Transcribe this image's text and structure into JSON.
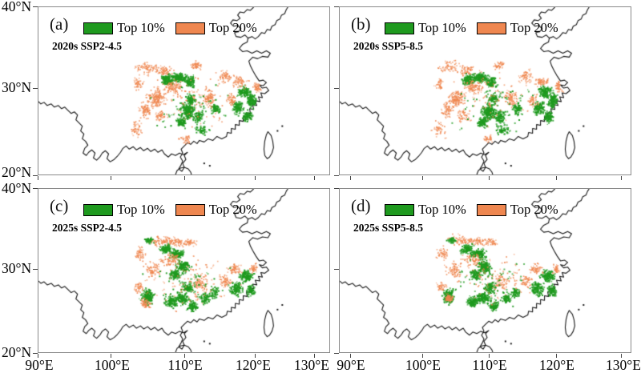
{
  "chart_data": {
    "type": "scatter",
    "description": "Four-panel map figure of southern/eastern China (90–130°E, 20–40°N) showing projected hotspot areas: Top 10% (green) and Top 20% (orange) under two SSP scenarios for 2020s and 2025s.",
    "legend": {
      "top10": "Top 10%",
      "top20": "Top 20%"
    },
    "colors": {
      "top10": "#1f9a1f",
      "top20": "#ef8750",
      "outline": "#161616",
      "frame": "#8a8a8a",
      "tick": "#444444"
    },
    "axes": {
      "lon_range": [
        90,
        130
      ],
      "lat_range": [
        20,
        40
      ],
      "lon_tick_labels": [
        "90°E",
        "100°E",
        "110°E",
        "120°E",
        "130°E"
      ],
      "lat_tick_labels": [
        "40°N",
        "30°N",
        "20°N"
      ]
    },
    "panels": [
      {
        "label": "(a)",
        "scenario": "2020s SSP2-4.5",
        "clusters": [
          [
            105.0,
            32.3,
            2.2,
            0.9,
            60,
            "o"
          ],
          [
            107.2,
            31.9,
            1.5,
            0.8,
            55,
            "o"
          ],
          [
            103.6,
            30.5,
            0.8,
            1.0,
            35,
            "o"
          ],
          [
            107.6,
            30.9,
            1.1,
            0.8,
            110,
            "g"
          ],
          [
            109.2,
            31.2,
            1.3,
            0.7,
            120,
            "g"
          ],
          [
            110.7,
            30.7,
            1.0,
            0.8,
            80,
            "g"
          ],
          [
            108.4,
            30.1,
            1.7,
            0.9,
            80,
            "o"
          ],
          [
            106.0,
            28.7,
            1.7,
            1.5,
            130,
            "o"
          ],
          [
            104.7,
            27.3,
            1.2,
            1.4,
            65,
            "o"
          ],
          [
            103.5,
            24.8,
            1.2,
            1.5,
            40,
            "o"
          ],
          [
            106.7,
            26.5,
            1.1,
            1.0,
            45,
            "o"
          ],
          [
            110.4,
            27.1,
            1.4,
            1.3,
            170,
            "g"
          ],
          [
            109.5,
            25.7,
            1.0,
            0.9,
            70,
            "g"
          ],
          [
            111.9,
            26.4,
            0.9,
            1.0,
            60,
            "g"
          ],
          [
            110.9,
            28.6,
            1.0,
            0.8,
            60,
            "g"
          ],
          [
            113.5,
            28.7,
            1.2,
            1.3,
            65,
            "o"
          ],
          [
            114.4,
            27.4,
            0.9,
            0.9,
            55,
            "g"
          ],
          [
            115.8,
            31.3,
            1.6,
            0.9,
            50,
            "o"
          ],
          [
            111.6,
            32.6,
            1.3,
            0.6,
            40,
            "o"
          ],
          [
            118.4,
            29.5,
            1.3,
            1.0,
            100,
            "g"
          ],
          [
            117.5,
            27.5,
            1.1,
            1.1,
            90,
            "g"
          ],
          [
            119.5,
            28.4,
            0.9,
            1.2,
            110,
            "g"
          ],
          [
            118.9,
            26.4,
            0.9,
            0.9,
            70,
            "g"
          ],
          [
            117.9,
            30.7,
            1.3,
            0.8,
            50,
            "o"
          ],
          [
            120.3,
            30.1,
            0.8,
            0.9,
            40,
            "o"
          ],
          [
            116.6,
            28.5,
            1.0,
            1.0,
            45,
            "o"
          ],
          [
            112.4,
            24.7,
            1.3,
            0.8,
            40,
            "g"
          ],
          [
            110.1,
            23.6,
            1.5,
            0.8,
            30,
            "o"
          ],
          [
            111.0,
            28.5,
            7.5,
            4.2,
            90,
            "o"
          ],
          [
            111.0,
            28.0,
            7.5,
            4.0,
            50,
            "g"
          ]
        ]
      },
      {
        "label": "(b)",
        "scenario": "2020s SSP5-8.5",
        "clusters": [
          [
            105.1,
            32.4,
            2.2,
            0.9,
            50,
            "o"
          ],
          [
            107.3,
            32.0,
            1.5,
            0.8,
            50,
            "o"
          ],
          [
            103.7,
            30.4,
            0.8,
            1.0,
            30,
            "o"
          ],
          [
            107.6,
            30.9,
            1.1,
            0.8,
            115,
            "g"
          ],
          [
            109.2,
            31.2,
            1.3,
            0.7,
            130,
            "g"
          ],
          [
            110.7,
            30.7,
            1.0,
            0.8,
            85,
            "g"
          ],
          [
            108.4,
            30.1,
            1.7,
            0.9,
            70,
            "o"
          ],
          [
            106.0,
            28.7,
            1.6,
            1.4,
            110,
            "o"
          ],
          [
            104.7,
            27.3,
            1.2,
            1.4,
            60,
            "o"
          ],
          [
            103.6,
            24.9,
            1.2,
            1.5,
            35,
            "o"
          ],
          [
            106.8,
            26.6,
            1.1,
            1.0,
            40,
            "o"
          ],
          [
            110.4,
            27.0,
            1.4,
            1.3,
            190,
            "g"
          ],
          [
            109.5,
            25.7,
            1.0,
            0.9,
            80,
            "g"
          ],
          [
            111.9,
            26.4,
            0.9,
            1.0,
            70,
            "g"
          ],
          [
            110.9,
            28.6,
            1.0,
            0.8,
            65,
            "g"
          ],
          [
            113.5,
            28.7,
            1.2,
            1.3,
            60,
            "o"
          ],
          [
            114.4,
            27.4,
            0.9,
            0.9,
            60,
            "g"
          ],
          [
            115.8,
            31.3,
            1.6,
            0.9,
            45,
            "o"
          ],
          [
            111.7,
            32.6,
            1.3,
            0.6,
            35,
            "o"
          ],
          [
            118.4,
            29.5,
            1.3,
            1.0,
            110,
            "g"
          ],
          [
            117.5,
            27.5,
            1.1,
            1.1,
            100,
            "g"
          ],
          [
            119.5,
            28.4,
            0.9,
            1.2,
            120,
            "g"
          ],
          [
            118.9,
            26.4,
            0.9,
            0.9,
            80,
            "g"
          ],
          [
            117.9,
            30.7,
            1.3,
            0.8,
            45,
            "o"
          ],
          [
            120.3,
            30.1,
            0.8,
            0.9,
            35,
            "o"
          ],
          [
            116.6,
            28.5,
            1.0,
            1.0,
            40,
            "o"
          ],
          [
            112.4,
            24.7,
            1.3,
            0.8,
            45,
            "g"
          ],
          [
            110.1,
            23.6,
            1.5,
            0.8,
            25,
            "o"
          ],
          [
            111.0,
            28.5,
            7.5,
            4.2,
            80,
            "o"
          ],
          [
            111.0,
            28.0,
            7.5,
            4.0,
            55,
            "g"
          ]
        ]
      },
      {
        "label": "(c)",
        "scenario": "2025s SSP2-4.5",
        "clusters": [
          [
            106.6,
            33.1,
            2.4,
            0.8,
            75,
            "o"
          ],
          [
            105.1,
            33.2,
            0.9,
            0.5,
            40,
            "g"
          ],
          [
            103.9,
            31.6,
            0.9,
            1.2,
            45,
            "o"
          ],
          [
            108.9,
            33.0,
            1.3,
            0.6,
            45,
            "o"
          ],
          [
            107.4,
            32.2,
            1.2,
            0.7,
            90,
            "g"
          ],
          [
            108.9,
            31.6,
            1.2,
            0.7,
            110,
            "g"
          ],
          [
            108.1,
            30.9,
            2.0,
            1.0,
            70,
            "o"
          ],
          [
            109.7,
            30.1,
            1.2,
            1.0,
            120,
            "g"
          ],
          [
            108.6,
            29.1,
            1.0,
            0.8,
            70,
            "g"
          ],
          [
            105.6,
            29.6,
            1.5,
            1.3,
            65,
            "o"
          ],
          [
            104.9,
            26.3,
            1.0,
            1.3,
            160,
            "g"
          ],
          [
            104.7,
            25.4,
            0.9,
            0.8,
            55,
            "o"
          ],
          [
            103.8,
            27.5,
            0.8,
            0.8,
            35,
            "o"
          ],
          [
            108.1,
            25.6,
            1.2,
            0.9,
            90,
            "g"
          ],
          [
            109.6,
            26.1,
            1.3,
            1.0,
            110,
            "g"
          ],
          [
            111.1,
            25.1,
            1.0,
            0.8,
            70,
            "g"
          ],
          [
            110.5,
            27.4,
            1.1,
            0.9,
            70,
            "g"
          ],
          [
            112.1,
            28.1,
            1.5,
            1.4,
            55,
            "o"
          ],
          [
            112.9,
            26.1,
            0.9,
            0.9,
            55,
            "g"
          ],
          [
            114.2,
            26.8,
            0.9,
            0.9,
            45,
            "g"
          ],
          [
            117.3,
            27.3,
            1.2,
            1.2,
            100,
            "g"
          ],
          [
            118.7,
            28.9,
            1.3,
            1.0,
            110,
            "g"
          ],
          [
            119.4,
            27.1,
            0.8,
            1.0,
            70,
            "g"
          ],
          [
            117.1,
            29.9,
            1.3,
            0.9,
            50,
            "o"
          ],
          [
            119.9,
            29.9,
            0.8,
            0.8,
            35,
            "o"
          ],
          [
            115.8,
            28.2,
            1.0,
            1.0,
            45,
            "o"
          ],
          [
            110.6,
            32.9,
            1.5,
            0.6,
            40,
            "o"
          ],
          [
            111.0,
            28.3,
            7.5,
            4.5,
            95,
            "o"
          ],
          [
            110.5,
            28.0,
            7.5,
            4.2,
            55,
            "g"
          ]
        ]
      },
      {
        "label": "(d)",
        "scenario": "2025s SSP5-8.5",
        "clusters": [
          [
            106.7,
            33.2,
            2.4,
            0.8,
            65,
            "o"
          ],
          [
            105.2,
            33.3,
            0.9,
            0.5,
            35,
            "g"
          ],
          [
            104.0,
            31.7,
            0.9,
            1.2,
            40,
            "o"
          ],
          [
            109.0,
            33.1,
            1.3,
            0.6,
            40,
            "o"
          ],
          [
            107.4,
            32.2,
            1.2,
            0.7,
            95,
            "g"
          ],
          [
            108.9,
            31.6,
            1.2,
            0.7,
            120,
            "g"
          ],
          [
            108.1,
            30.9,
            2.0,
            1.0,
            65,
            "o"
          ],
          [
            109.7,
            30.1,
            1.2,
            1.0,
            130,
            "g"
          ],
          [
            108.6,
            29.1,
            1.0,
            0.8,
            75,
            "g"
          ],
          [
            105.6,
            29.7,
            1.5,
            1.3,
            60,
            "o"
          ],
          [
            104.9,
            26.3,
            1.0,
            1.3,
            150,
            "g"
          ],
          [
            104.9,
            26.1,
            0.7,
            0.7,
            80,
            "o"
          ],
          [
            103.9,
            27.6,
            0.8,
            0.8,
            30,
            "o"
          ],
          [
            108.1,
            25.6,
            1.2,
            0.9,
            95,
            "g"
          ],
          [
            109.6,
            26.1,
            1.3,
            1.0,
            120,
            "g"
          ],
          [
            111.1,
            25.1,
            1.0,
            0.8,
            75,
            "g"
          ],
          [
            110.5,
            27.4,
            1.1,
            0.9,
            75,
            "g"
          ],
          [
            112.1,
            28.1,
            1.5,
            1.4,
            50,
            "o"
          ],
          [
            112.9,
            26.1,
            0.9,
            0.9,
            60,
            "g"
          ],
          [
            114.2,
            26.8,
            0.9,
            0.9,
            50,
            "g"
          ],
          [
            117.3,
            27.3,
            1.2,
            1.2,
            105,
            "g"
          ],
          [
            118.7,
            28.9,
            1.3,
            1.0,
            115,
            "g"
          ],
          [
            119.4,
            27.1,
            0.8,
            1.0,
            75,
            "g"
          ],
          [
            117.1,
            29.9,
            1.3,
            0.9,
            45,
            "o"
          ],
          [
            119.9,
            29.9,
            0.8,
            0.8,
            30,
            "o"
          ],
          [
            115.8,
            28.2,
            1.0,
            1.0,
            40,
            "o"
          ],
          [
            110.7,
            33.0,
            1.5,
            0.6,
            35,
            "o"
          ],
          [
            111.0,
            28.3,
            7.5,
            4.5,
            85,
            "o"
          ],
          [
            110.5,
            28.0,
            7.5,
            4.2,
            60,
            "g"
          ]
        ]
      }
    ]
  }
}
